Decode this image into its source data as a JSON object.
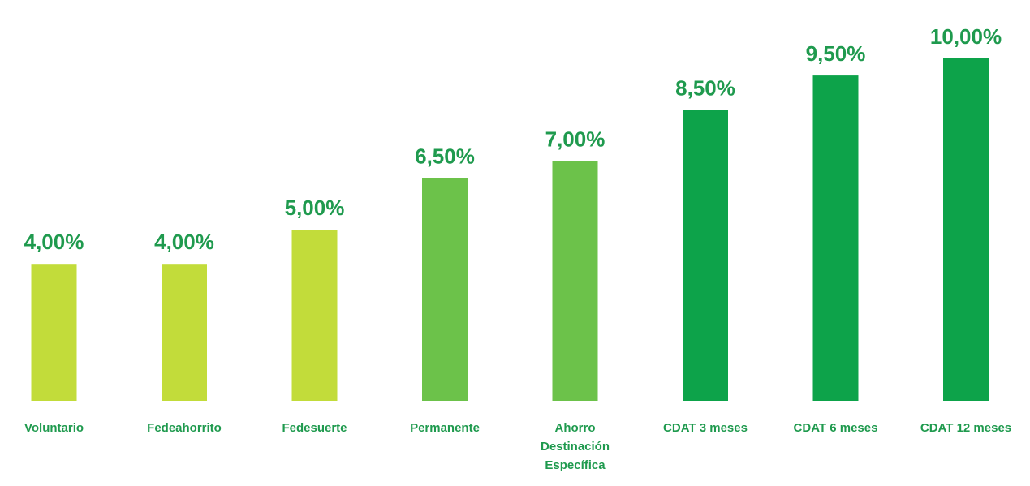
{
  "chart_data": {
    "type": "bar",
    "title": "",
    "xlabel": "",
    "ylabel": "",
    "ylim": [
      0,
      10.5
    ],
    "grid": false,
    "legend": "none",
    "categories": [
      [
        "Voluntario"
      ],
      [
        "Fedeahorrito"
      ],
      [
        "Fedesuerte"
      ],
      [
        "Permanente"
      ],
      [
        "Ahorro",
        "Destinación",
        "Específica"
      ],
      [
        "CDAT 3 meses"
      ],
      [
        "CDAT 6 meses"
      ],
      [
        "CDAT 12 meses"
      ]
    ],
    "values": [
      4.0,
      4.0,
      5.0,
      6.5,
      7.0,
      8.5,
      9.5,
      10.0
    ],
    "value_labels": [
      "4,00%",
      "4,00%",
      "5,00%",
      "6,50%",
      "7,00%",
      "8,50%",
      "9,50%",
      "10,00%"
    ],
    "bar_colors": [
      "#c2dc3a",
      "#c2dc3a",
      "#c2dc3a",
      "#6cc24a",
      "#6cc24a",
      "#0da34a",
      "#0da34a",
      "#0da34a"
    ],
    "label_color": "#1f9a4e"
  }
}
